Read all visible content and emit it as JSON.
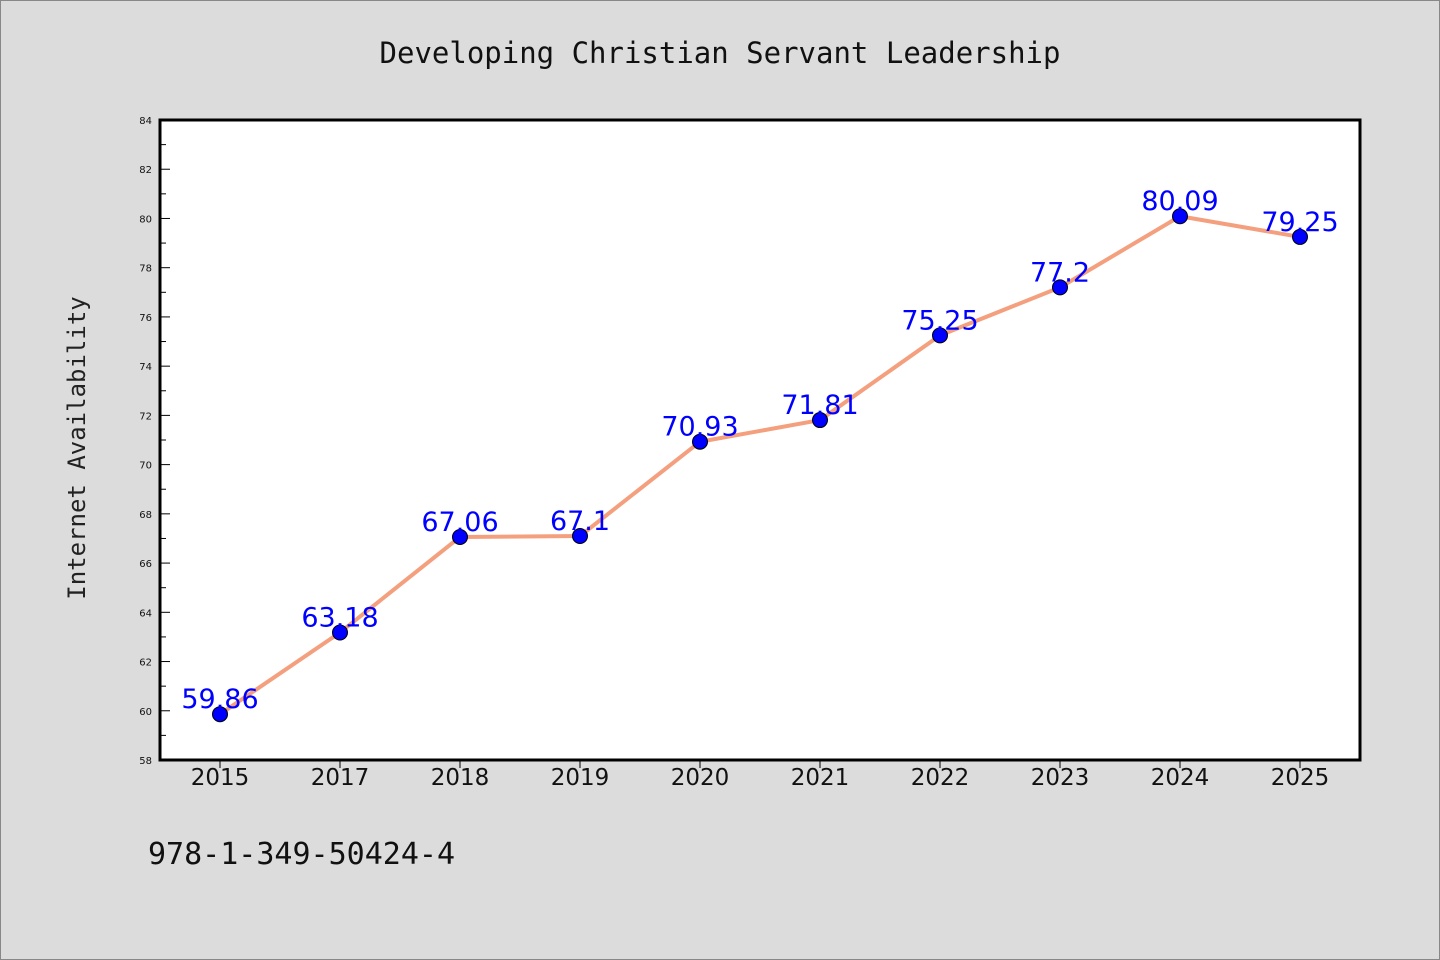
{
  "chart_data": {
    "type": "line",
    "title": "Developing Christian Servant Leadership",
    "xlabel": "",
    "ylabel": "Internet Availability",
    "categories": [
      "2015",
      "2017",
      "2018",
      "2019",
      "2020",
      "2021",
      "2022",
      "2023",
      "2024",
      "2025"
    ],
    "series": [
      {
        "values": [
          59.86,
          63.18,
          67.06,
          67.1,
          70.93,
          71.81,
          75.25,
          77.2,
          80.09,
          79.25
        ]
      }
    ],
    "data_labels": [
      "59.86",
      "63.18",
      "67.06",
      "67.1",
      "70.93",
      "71.81",
      "75.25",
      "77.2",
      "80.09",
      "79.25"
    ],
    "ylim": [
      58,
      84
    ],
    "ytick_step": 2,
    "grid": false,
    "legend": "none",
    "colors": {
      "line": "#f4a07e",
      "marker": "#0000ff",
      "label": "#0000ff",
      "background": "#dcdcdc",
      "plot_area": "#ffffff"
    }
  },
  "footer_text": "978-1-349-50424-4"
}
